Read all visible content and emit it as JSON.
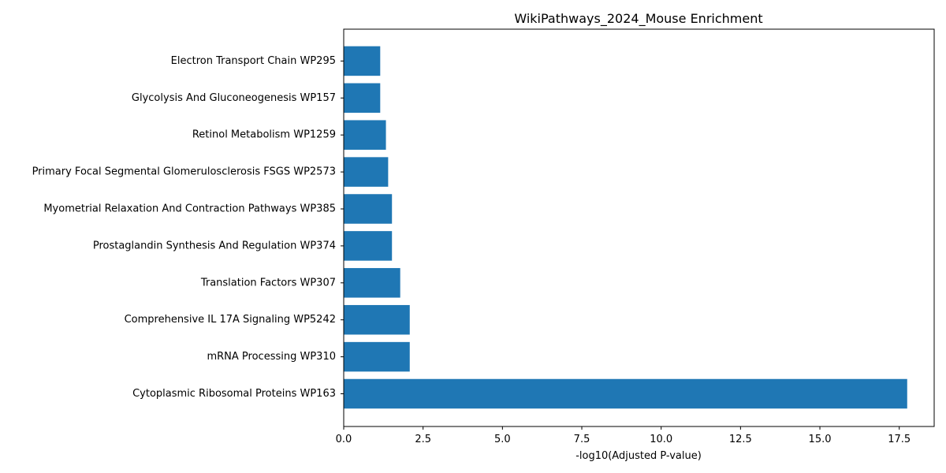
{
  "chart_data": {
    "type": "bar",
    "orientation": "horizontal",
    "title": "WikiPathways_2024_Mouse Enrichment",
    "xlabel": "-log10(Adjusted P-value)",
    "ylabel": "",
    "xlim": [
      0,
      18.6
    ],
    "xticks": [
      0.0,
      2.5,
      5.0,
      7.5,
      10.0,
      12.5,
      15.0,
      17.5
    ],
    "xtick_labels": [
      "0.0",
      "2.5",
      "5.0",
      "7.5",
      "10.0",
      "12.5",
      "15.0",
      "17.5"
    ],
    "categories": [
      "Cytoplasmic Ribosomal Proteins WP163",
      "mRNA Processing WP310",
      "Comprehensive IL 17A Signaling WP5242",
      "Translation Factors WP307",
      "Prostaglandin Synthesis And Regulation WP374",
      "Myometrial Relaxation And Contraction Pathways WP385",
      "Primary Focal Segmental Glomerulosclerosis FSGS WP2573",
      "Retinol Metabolism WP1259",
      "Glycolysis And Gluconeogenesis WP157",
      "Electron Transport Chain WP295"
    ],
    "values": [
      17.75,
      2.08,
      2.08,
      1.78,
      1.52,
      1.52,
      1.4,
      1.33,
      1.15,
      1.15
    ],
    "bar_color": "#1f77b4",
    "grid": false,
    "legend": "none"
  }
}
